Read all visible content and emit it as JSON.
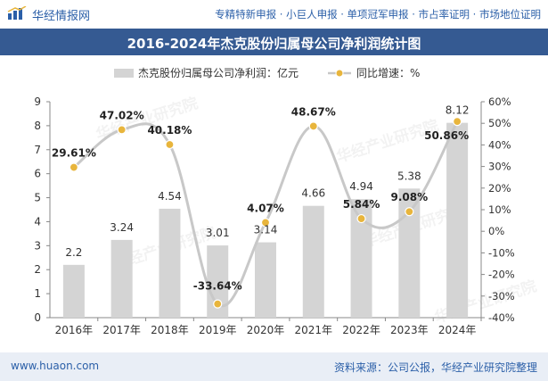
{
  "header": {
    "brand": "华经情报网",
    "services": "专精特新申报 · 小巨人申报 · 单项冠军申报 · 市占率证明 · 市场地位证明"
  },
  "title": "2016-2024年杰克股份归属母公司净利润统计图",
  "legend": {
    "bar_label": "杰克股份归属母公司净利润：亿元",
    "line_label": "同比增速：%"
  },
  "watermark": "华经产业研究院",
  "footer": {
    "site": "www.huaon.com",
    "source": "资料来源：公司公报，华经产业研究院整理"
  },
  "colors": {
    "bar": "#d4d4d4",
    "line": "#c8c8c8",
    "marker": "#e8b53c",
    "title_bg": "#355a92",
    "brand": "#2b5fa8"
  },
  "chart_data": {
    "type": "bar",
    "categories": [
      "2016年",
      "2017年",
      "2018年",
      "2019年",
      "2020年",
      "2021年",
      "2022年",
      "2023年",
      "2024年"
    ],
    "series": [
      {
        "name": "杰克股份归属母公司净利润：亿元",
        "type": "bar",
        "axis": "left",
        "values": [
          2.2,
          3.24,
          4.54,
          3.01,
          3.14,
          4.66,
          4.94,
          5.38,
          8.12
        ],
        "labels": [
          "2.2",
          "3.24",
          "4.54",
          "3.01",
          "3.14",
          "4.66",
          "4.94",
          "5.38",
          "8.12"
        ]
      },
      {
        "name": "同比增速：%",
        "type": "line",
        "axis": "right",
        "values": [
          29.61,
          47.02,
          40.18,
          -33.64,
          4.07,
          48.67,
          5.84,
          9.08,
          50.86
        ],
        "labels": [
          "29.61%",
          "47.02%",
          "40.18%",
          "-33.64%",
          "4.07%",
          "48.67%",
          "5.84%",
          "9.08%",
          "50.86%"
        ]
      }
    ],
    "ylim_left": [
      0,
      9
    ],
    "ylim_right": [
      -40,
      60
    ],
    "yticks_left": [
      "0",
      "1",
      "2",
      "3",
      "4",
      "5",
      "6",
      "7",
      "8",
      "9"
    ],
    "yticks_right": [
      "-40%",
      "-30%",
      "-20%",
      "-10%",
      "0%",
      "10%",
      "20%",
      "30%",
      "40%",
      "50%",
      "60%"
    ],
    "legend_position": "top",
    "grid": false
  }
}
